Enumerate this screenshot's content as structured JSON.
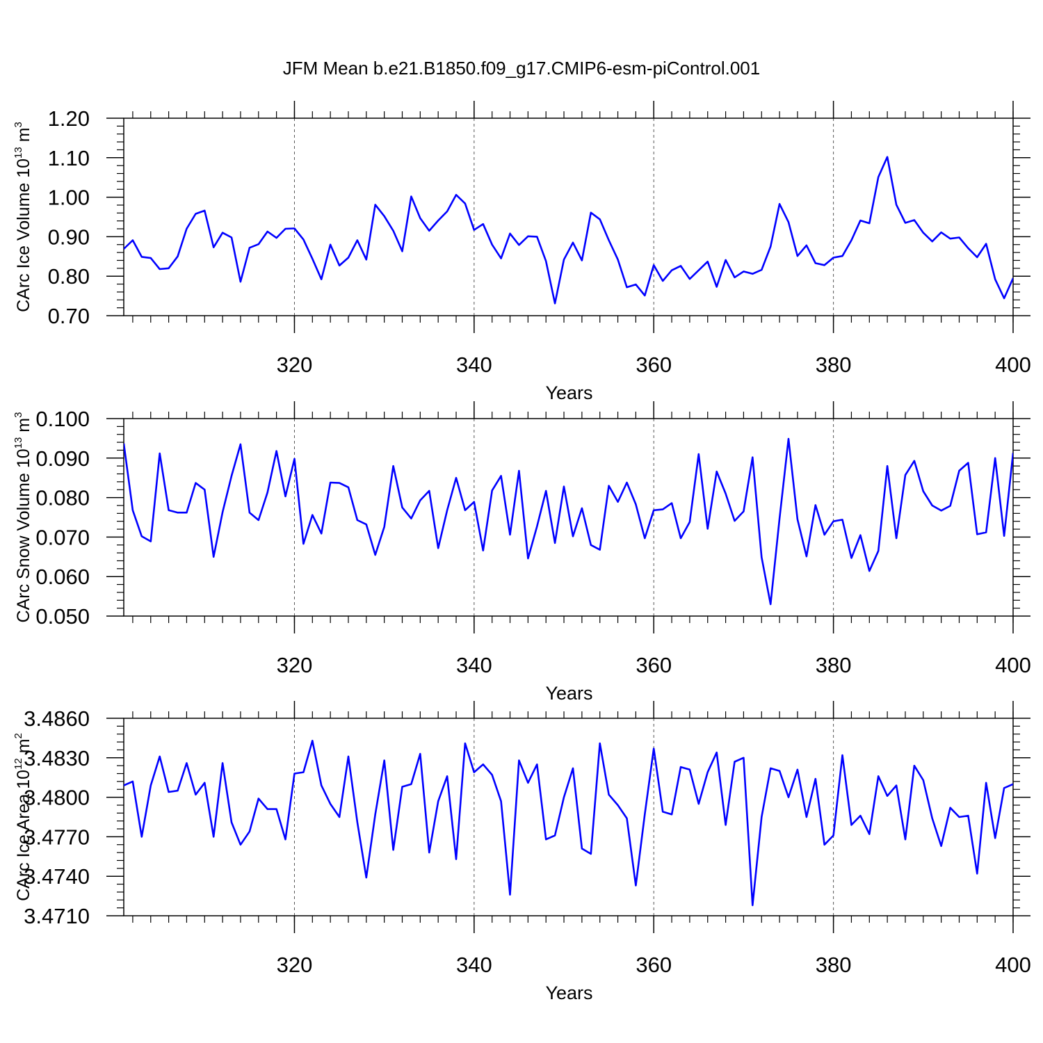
{
  "title": "JFM Mean b.e21.B1850.f09_g17.CMIP6-esm-piControl.001",
  "colors": {
    "line": "#0000ff",
    "axis": "#000000",
    "grid": "#555555"
  },
  "chart_data": [
    {
      "type": "line",
      "xlabel": "Years",
      "ylabel_text": "CArc Ice Volume 10",
      "ylabel_exp": "13",
      "ylabel_unit": " m",
      "ylabel_unit_exp": "3",
      "xlim": [
        301,
        400
      ],
      "ylim": [
        0.7,
        1.2
      ],
      "xticks": [
        320,
        340,
        360,
        380,
        400
      ],
      "xtick_labels": [
        "320",
        "340",
        "360",
        "380",
        "400"
      ],
      "yticks": [
        0.7,
        0.8,
        0.9,
        1.0,
        1.1,
        1.2
      ],
      "ytick_labels": [
        "0.70",
        "0.80",
        "0.90",
        "1.00",
        "1.10",
        "1.20"
      ],
      "gridlines_x": [
        320,
        340,
        360,
        380
      ],
      "x_start": 301,
      "values": [
        0.869,
        0.891,
        0.849,
        0.846,
        0.818,
        0.82,
        0.85,
        0.92,
        0.958,
        0.966,
        0.873,
        0.91,
        0.898,
        0.786,
        0.872,
        0.881,
        0.913,
        0.897,
        0.92,
        0.921,
        0.893,
        0.844,
        0.792,
        0.88,
        0.827,
        0.847,
        0.891,
        0.842,
        0.981,
        0.952,
        0.915,
        0.863,
        1.002,
        0.947,
        0.915,
        0.941,
        0.964,
        1.006,
        0.984,
        0.917,
        0.932,
        0.88,
        0.845,
        0.908,
        0.879,
        0.901,
        0.9,
        0.838,
        0.731,
        0.842,
        0.885,
        0.84,
        0.961,
        0.944,
        0.891,
        0.842,
        0.772,
        0.779,
        0.751,
        0.828,
        0.788,
        0.815,
        0.826,
        0.793,
        0.815,
        0.837,
        0.773,
        0.841,
        0.797,
        0.812,
        0.806,
        0.816,
        0.875,
        0.983,
        0.937,
        0.851,
        0.878,
        0.833,
        0.828,
        0.847,
        0.851,
        0.891,
        0.941,
        0.934,
        1.051,
        1.102,
        0.981,
        0.935,
        0.942,
        0.91,
        0.888,
        0.911,
        0.895,
        0.898,
        0.871,
        0.848,
        0.882,
        0.792,
        0.744,
        0.795
      ]
    },
    {
      "type": "line",
      "xlabel": "Years",
      "ylabel_text": "CArc Snow Volume 10",
      "ylabel_exp": "13",
      "ylabel_unit": " m",
      "ylabel_unit_exp": "3",
      "xlim": [
        301,
        400
      ],
      "ylim": [
        0.05,
        0.1
      ],
      "xticks": [
        320,
        340,
        360,
        380,
        400
      ],
      "xtick_labels": [
        "320",
        "340",
        "360",
        "380",
        "400"
      ],
      "yticks": [
        0.05,
        0.06,
        0.07,
        0.08,
        0.09,
        0.1
      ],
      "ytick_labels": [
        "0.050",
        "0.060",
        "0.070",
        "0.080",
        "0.090",
        "0.100"
      ],
      "gridlines_x": [
        320,
        340,
        360,
        380
      ],
      "x_start": 301,
      "values": [
        0.0937,
        0.0768,
        0.0702,
        0.0689,
        0.0912,
        0.0768,
        0.0762,
        0.0762,
        0.0837,
        0.082,
        0.065,
        0.0763,
        0.0855,
        0.0935,
        0.0762,
        0.0743,
        0.0813,
        0.0918,
        0.0803,
        0.0898,
        0.0683,
        0.0756,
        0.0709,
        0.0838,
        0.0837,
        0.0826,
        0.0743,
        0.0732,
        0.0655,
        0.0726,
        0.088,
        0.0775,
        0.0747,
        0.0793,
        0.0817,
        0.0672,
        0.0768,
        0.085,
        0.0768,
        0.0789,
        0.0666,
        0.0818,
        0.0855,
        0.0706,
        0.0868,
        0.0646,
        0.0727,
        0.0817,
        0.0685,
        0.0828,
        0.0702,
        0.0773,
        0.068,
        0.0668,
        0.083,
        0.0789,
        0.0838,
        0.0783,
        0.0697,
        0.0768,
        0.077,
        0.0786,
        0.0697,
        0.0738,
        0.091,
        0.0721,
        0.0866,
        0.081,
        0.0741,
        0.0765,
        0.0902,
        0.0649,
        0.053,
        0.0747,
        0.0949,
        0.0745,
        0.0651,
        0.0781,
        0.0706,
        0.074,
        0.0744,
        0.0647,
        0.0705,
        0.0614,
        0.0665,
        0.088,
        0.0697,
        0.0857,
        0.0893,
        0.0816,
        0.078,
        0.0767,
        0.0779,
        0.0868,
        0.0888,
        0.0707,
        0.0712,
        0.09,
        0.0703,
        0.0913
      ]
    },
    {
      "type": "line",
      "xlabel": "Years",
      "ylabel_text": "CArc Ice Area 10",
      "ylabel_exp": "12",
      "ylabel_unit": " m",
      "ylabel_unit_exp": "2",
      "xlim": [
        301,
        400
      ],
      "ylim": [
        3.471,
        3.486
      ],
      "xticks": [
        320,
        340,
        360,
        380,
        400
      ],
      "xtick_labels": [
        "320",
        "340",
        "360",
        "380",
        "400"
      ],
      "yticks": [
        3.471,
        3.474,
        3.477,
        3.48,
        3.483,
        3.486
      ],
      "ytick_labels": [
        "3.4710",
        "3.4740",
        "3.4770",
        "3.4800",
        "3.4830",
        "3.4860"
      ],
      "gridlines_x": [
        320,
        340,
        360,
        380
      ],
      "x_start": 301,
      "values": [
        3.4809,
        3.4812,
        3.477,
        3.4809,
        3.4831,
        3.4804,
        3.4805,
        3.4826,
        3.4802,
        3.4811,
        3.477,
        3.4826,
        3.4781,
        3.4764,
        3.4774,
        3.4799,
        3.4791,
        3.4791,
        3.4768,
        3.4818,
        3.4819,
        3.4843,
        3.4809,
        3.4795,
        3.4785,
        3.4831,
        3.4781,
        3.4739,
        3.4787,
        3.4828,
        3.476,
        3.4808,
        3.481,
        3.4833,
        3.4758,
        3.4797,
        3.4816,
        3.4753,
        3.4841,
        3.4819,
        3.4825,
        3.4817,
        3.4797,
        3.4726,
        3.4828,
        3.4811,
        3.4825,
        3.4768,
        3.4771,
        3.48,
        3.4822,
        3.4761,
        3.4757,
        3.4841,
        3.4802,
        3.4794,
        3.4784,
        3.4733,
        3.4787,
        3.4837,
        3.4789,
        3.4787,
        3.4823,
        3.4821,
        3.4795,
        3.4819,
        3.4834,
        3.4779,
        3.4827,
        3.483,
        3.4718,
        3.4785,
        3.4822,
        3.482,
        3.48,
        3.4821,
        3.4785,
        3.4814,
        3.4764,
        3.4771,
        3.4832,
        3.4779,
        3.4786,
        3.4772,
        3.4816,
        3.4801,
        3.4809,
        3.4768,
        3.4824,
        3.4813,
        3.4784,
        3.4763,
        3.4792,
        3.4785,
        3.4786,
        3.4742,
        3.4811,
        3.4769,
        3.4807,
        3.481
      ]
    }
  ]
}
